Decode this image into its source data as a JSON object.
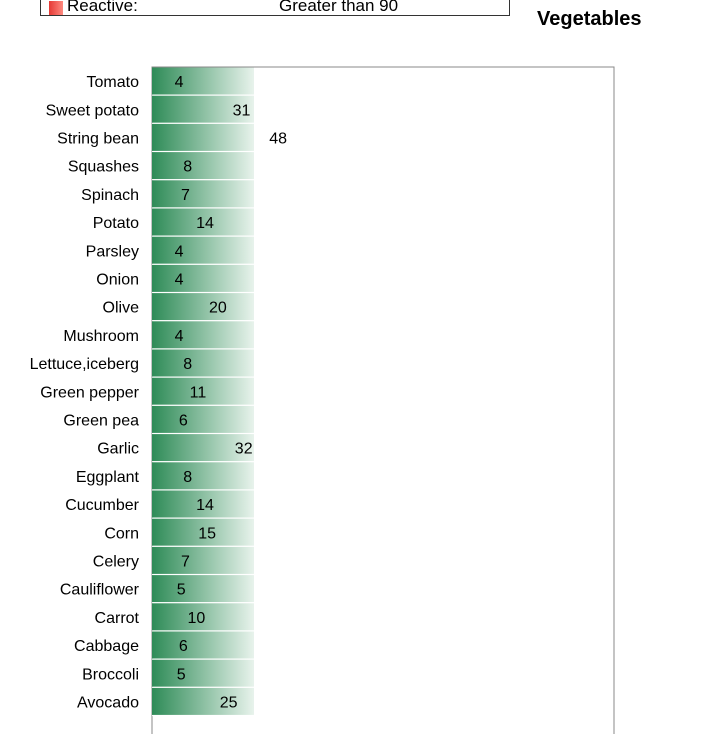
{
  "legend": {
    "label": "Reactive:",
    "value": "Greater than 90",
    "swatch_color": "#e53935"
  },
  "chart_data": {
    "type": "bar",
    "orientation": "horizontal",
    "title": "Vegetables",
    "categories": [
      "Tomato",
      "Sweet potato",
      "String bean",
      "Squashes",
      "Spinach",
      "Potato",
      "Parsley",
      "Onion",
      "Olive",
      "Mushroom",
      "Lettuce,iceberg",
      "Green pepper",
      "Green pea",
      "Garlic",
      "Eggplant",
      "Cucumber",
      "Corn",
      "Celery",
      "Cauliflower",
      "Carrot",
      "Cabbage",
      "Broccoli",
      "Avocado"
    ],
    "values": [
      4,
      31,
      48,
      8,
      7,
      14,
      4,
      4,
      20,
      4,
      8,
      11,
      6,
      32,
      8,
      14,
      15,
      7,
      5,
      10,
      6,
      5,
      25
    ],
    "xlabel": "",
    "ylabel": "",
    "grid": false,
    "legend_position": "top",
    "colors": {
      "bar_start": "#2e8b57",
      "bar_end": "#e8f3ec"
    }
  }
}
